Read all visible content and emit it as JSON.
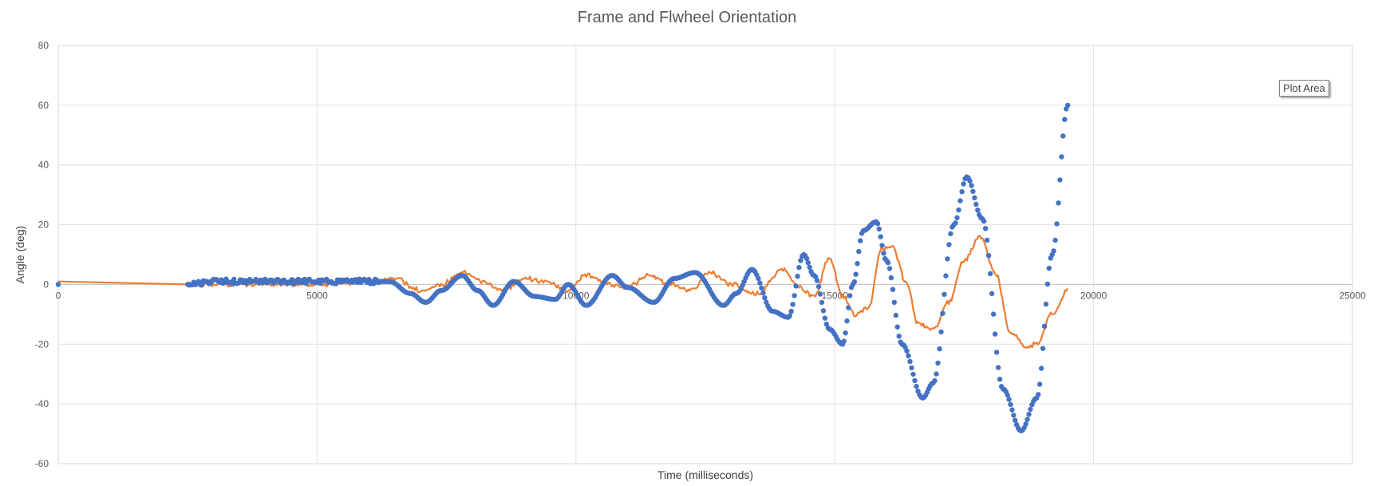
{
  "chart_data": {
    "type": "scatter",
    "title": "Frame and Flwheel Orientation",
    "xlabel": "Time (milliseconds)",
    "ylabel": "Angle (deg)",
    "xlim": [
      0,
      25000
    ],
    "ylim": [
      -60,
      80
    ],
    "xticks": [
      0,
      5000,
      10000,
      15000,
      20000,
      25000
    ],
    "yticks": [
      -60,
      -40,
      -20,
      0,
      20,
      40,
      60,
      80
    ],
    "grid": true,
    "legend": "none",
    "series": [
      {
        "style": "markers",
        "color": "#4472C4",
        "x": [
          0,
          2500,
          3000,
          4000,
          5000,
          6000,
          6400,
          6800,
          7100,
          7400,
          7800,
          8100,
          8400,
          8800,
          9200,
          9600,
          9850,
          10200,
          10700,
          11000,
          11500,
          11900,
          12300,
          12850,
          13100,
          13400,
          13800,
          14100,
          14400,
          14600,
          14900,
          15150,
          15350,
          15550,
          15800,
          16000,
          16300,
          16700,
          16900,
          17300,
          17550,
          17850,
          18250,
          18600,
          18900,
          19200,
          19500
        ],
        "y": [
          0,
          0,
          1,
          1,
          1,
          1,
          1,
          -3,
          -6,
          -2,
          3,
          -2,
          -7,
          1,
          -4,
          -5,
          0,
          -7,
          3,
          -1,
          -6,
          2,
          4,
          -7,
          -3,
          5,
          -9,
          -11,
          10,
          3,
          -15,
          -20,
          0,
          18,
          21,
          8,
          -20,
          -38,
          -33,
          20,
          36,
          22,
          -35,
          -49,
          -38,
          10,
          60
        ]
      },
      {
        "style": "line",
        "color": "#ED7D31",
        "x": [
          0,
          2500,
          3000,
          4000,
          5000,
          6000,
          6500,
          7000,
          7400,
          7800,
          8200,
          8600,
          9000,
          9400,
          9800,
          10200,
          10600,
          11000,
          11400,
          11800,
          12200,
          12600,
          13000,
          13500,
          14000,
          14300,
          14600,
          14900,
          15150,
          15400,
          15650,
          15900,
          16100,
          16400,
          16600,
          16900,
          17200,
          17500,
          17800,
          18100,
          18400,
          18700,
          18900,
          19200,
          19500
        ],
        "y": [
          1,
          0,
          0,
          0,
          0,
          1,
          2,
          -2,
          0,
          4,
          1,
          -2,
          2,
          1,
          -2,
          3,
          0,
          -1,
          3,
          0,
          -2,
          4,
          0,
          -3,
          5,
          -1,
          -4,
          9,
          -4,
          -10,
          -8,
          12,
          13,
          0,
          -13,
          -15,
          -6,
          8,
          16,
          4,
          -16,
          -21,
          -20,
          -10,
          -2
        ]
      }
    ]
  },
  "tooltip": {
    "label": "Plot Area"
  }
}
